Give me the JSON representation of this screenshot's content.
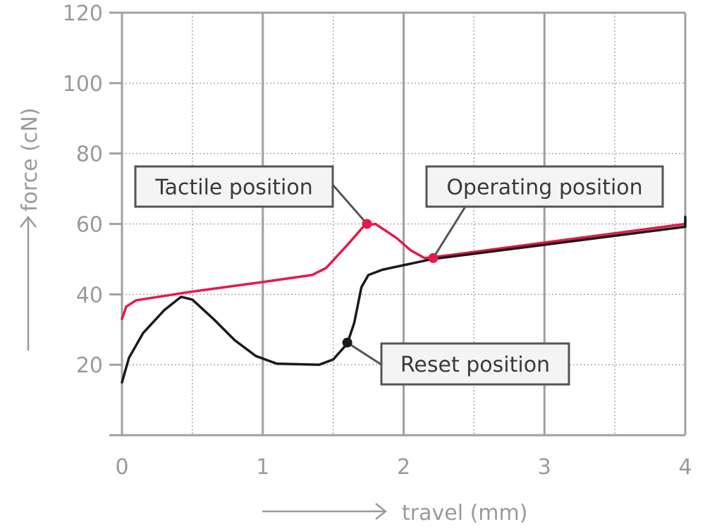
{
  "chart_data": {
    "type": "line",
    "title": "",
    "xlabel": "travel (mm)",
    "ylabel": "force (cN)",
    "xlim": [
      0,
      4
    ],
    "ylim": [
      0,
      120
    ],
    "x_ticks": [
      0,
      1,
      2,
      3,
      4
    ],
    "y_ticks": [
      20,
      40,
      60,
      80,
      100,
      120
    ],
    "grid": true,
    "colors": {
      "red": "#e5194a",
      "black": "#1a1a1a",
      "axis": "#a0a0a0",
      "label": "#9a9a9a",
      "box_border": "#555555",
      "box_fill": "#f4f4f4",
      "box_text": "#3a3a3a"
    },
    "series": [
      {
        "color": "#e5194a",
        "points": [
          [
            0,
            33
          ],
          [
            0.03,
            36.5
          ],
          [
            0.1,
            38.3
          ],
          [
            0.5,
            40.8
          ],
          [
            1.0,
            43.5
          ],
          [
            1.35,
            45.5
          ],
          [
            1.45,
            47.5
          ],
          [
            1.6,
            54
          ],
          [
            1.72,
            59.5
          ],
          [
            1.8,
            60
          ],
          [
            1.95,
            56
          ],
          [
            2.05,
            52.5
          ],
          [
            2.15,
            50.3
          ],
          [
            2.3,
            51
          ],
          [
            4,
            60
          ],
          [
            4,
            61
          ]
        ]
      },
      {
        "color": "#1a1a1a",
        "points": [
          [
            0,
            15
          ],
          [
            0.05,
            22
          ],
          [
            0.15,
            29
          ],
          [
            0.3,
            35.5
          ],
          [
            0.42,
            39.3
          ],
          [
            0.5,
            38.5
          ],
          [
            0.65,
            33
          ],
          [
            0.8,
            27
          ],
          [
            0.95,
            22.5
          ],
          [
            1.1,
            20.3
          ],
          [
            1.4,
            20
          ],
          [
            1.5,
            21.5
          ],
          [
            1.6,
            26
          ],
          [
            1.65,
            32
          ],
          [
            1.7,
            42
          ],
          [
            1.75,
            45.5
          ],
          [
            1.85,
            47
          ],
          [
            2.2,
            50
          ],
          [
            4,
            59.2
          ],
          [
            4,
            62
          ]
        ]
      }
    ],
    "annotations": [
      {
        "label": "Tactile position",
        "x": 1.74,
        "y": 60,
        "color": "#e5194a"
      },
      {
        "label": "Operating position",
        "x": 2.21,
        "y": 50.3,
        "color": "#e5194a"
      },
      {
        "label": "Reset position",
        "x": 1.6,
        "y": 26.3,
        "color": "#1a1a1a"
      }
    ]
  }
}
